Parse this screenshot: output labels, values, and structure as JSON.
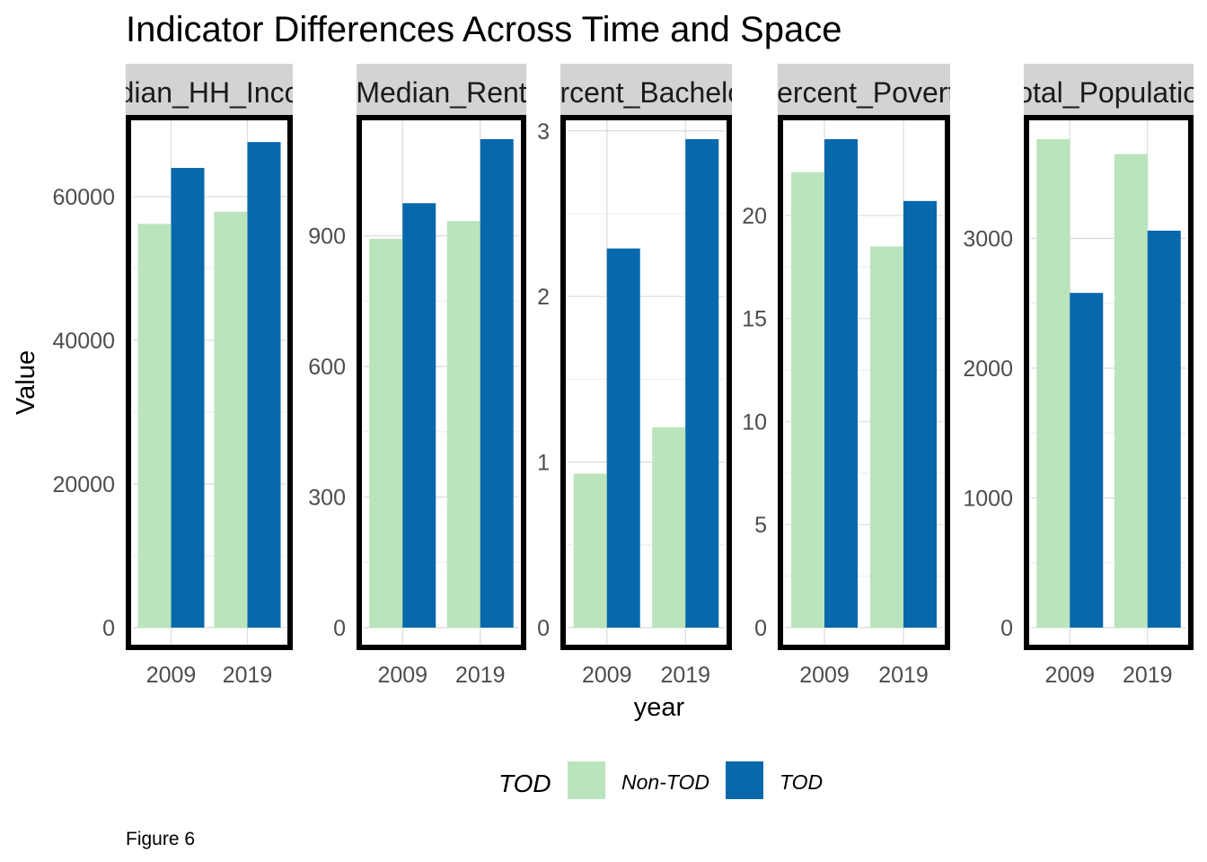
{
  "chart_data": {
    "type": "bar",
    "title": "Indicator Differences Across Time and Space",
    "xlabel": "year",
    "ylabel": "Value",
    "caption": "Figure 6",
    "legend": {
      "title": "TOD",
      "position": "bottom"
    },
    "categories": [
      "2009",
      "2019"
    ],
    "colors": {
      "Non-TOD": "#bae4bc",
      "TOD": "#0868ac"
    },
    "grid": true,
    "panels": [
      {
        "strip": "Median_HH_Income",
        "ylim": [
          0,
          68000
        ],
        "yticks": [
          0,
          20000,
          40000,
          60000
        ],
        "series": [
          {
            "name": "Non-TOD",
            "values": [
              56200,
              57900
            ]
          },
          {
            "name": "TOD",
            "values": [
              64000,
              67600
            ]
          }
        ]
      },
      {
        "strip": "Median_Rent",
        "ylim": [
          0,
          1122
        ],
        "yticks": [
          0,
          300,
          600,
          900
        ],
        "series": [
          {
            "name": "Non-TOD",
            "values": [
              893,
              934
            ]
          },
          {
            "name": "TOD",
            "values": [
              975,
              1122
            ]
          }
        ]
      },
      {
        "strip": "Percent_Bachelors",
        "ylim": [
          0,
          2.95
        ],
        "yticks": [
          0,
          1,
          2,
          3
        ],
        "series": [
          {
            "name": "Non-TOD",
            "values": [
              0.93,
              1.21
            ]
          },
          {
            "name": "TOD",
            "values": [
              2.29,
              2.95
            ]
          }
        ]
      },
      {
        "strip": "Percent_Poverty",
        "ylim": [
          0,
          23.7
        ],
        "yticks": [
          0,
          5,
          10,
          15,
          20
        ],
        "series": [
          {
            "name": "Non-TOD",
            "values": [
              22.1,
              18.5
            ]
          },
          {
            "name": "TOD",
            "values": [
              23.7,
              20.7
            ]
          }
        ]
      },
      {
        "strip": "Total_Population",
        "ylim": [
          0,
          3765
        ],
        "yticks": [
          0,
          1000,
          2000,
          3000
        ],
        "series": [
          {
            "name": "Non-TOD",
            "values": [
              3765,
              3650
            ]
          },
          {
            "name": "TOD",
            "values": [
              2580,
              3060
            ]
          }
        ]
      }
    ]
  }
}
